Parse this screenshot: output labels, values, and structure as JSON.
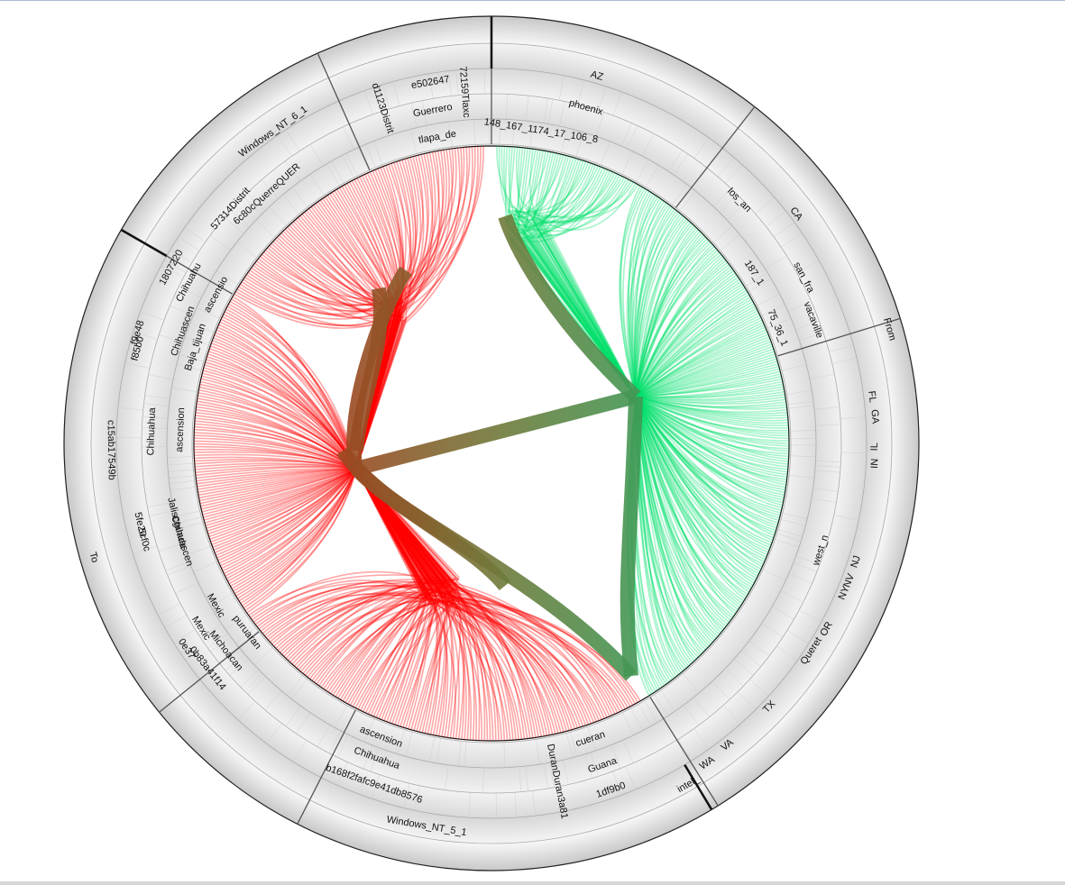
{
  "from_label": "From",
  "to_label": "To",
  "labels": [
    "AZ",
    "phoenix",
    "148_167_1174_17_106_8",
    "CA",
    "los_an",
    "187_1",
    "san_fra",
    "vacaville",
    "75_36_1",
    "FL",
    "GA",
    "IL",
    "IN",
    "west_n",
    "NJ",
    "NV",
    "NY",
    "OR",
    "Queret",
    "TX",
    "VA",
    "WA",
    "intel_",
    "1df9b0",
    "Guana",
    "cueran",
    "DuranDuran3a81",
    "Windows_NT_5_1",
    "b168f2fafc9e41db8576",
    "Chihuahua",
    "ascension",
    "0b83a41f14",
    "Michoacan",
    "puruaran",
    "0e37",
    "Mexic",
    "Mexic",
    "5cf0c",
    "Chihuascen",
    "5fe20",
    "Jaliscguada",
    "c15ab17549b",
    "Chihuahua",
    "ascension",
    "f85b0",
    "Baja_tijuan",
    "f9e48",
    "Chihuascen",
    "1807220",
    "Chihuahu",
    "ascensio",
    "57314Distrit",
    "6c80cQuerreQUER",
    "Windows_NT_6_1",
    "d1123Distrit",
    "Guerrero",
    "e502647",
    "72159Tlaxc",
    "tlapa_de"
  ]
}
